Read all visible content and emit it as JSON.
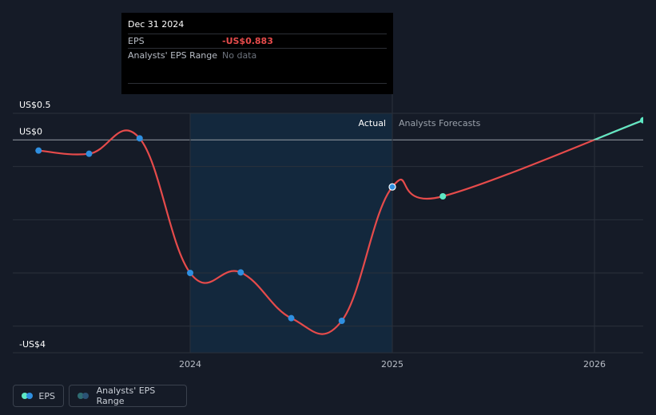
{
  "chart_data": {
    "type": "line",
    "series": [
      {
        "name": "EPS",
        "x": [
          2023.25,
          2023.5,
          2023.75,
          2024.0,
          2024.25,
          2024.5,
          2024.75,
          2025.0
        ],
        "values": [
          -0.2,
          -0.26,
          0.03,
          -2.5,
          -2.49,
          -3.35,
          -3.4,
          -0.883
        ]
      },
      {
        "name": "Analysts Forecasts",
        "x": [
          2025.0,
          2025.25,
          2026.25
        ],
        "values": [
          -0.883,
          -1.06,
          0.37
        ]
      }
    ],
    "ylim": [
      -4,
      0.5
    ],
    "xlim": [
      2023.0,
      2026.25
    ],
    "y_tick_labels": [
      {
        "value": 0.5,
        "label": "US$0.5"
      },
      {
        "value": 0,
        "label": "US$0"
      },
      {
        "value": -4,
        "label": "-US$4"
      }
    ],
    "x_ticks": [
      {
        "value": 2024,
        "label": "2024"
      },
      {
        "value": 2025,
        "label": "2025"
      },
      {
        "value": 2026,
        "label": "2026"
      }
    ],
    "section_labels": {
      "actual": "Actual",
      "forecast": "Analysts Forecasts"
    },
    "highlight_range": [
      2024.0,
      2025.0
    ],
    "colors": {
      "actual_line": "#e64b4b",
      "actual_point": "#2f8fe0",
      "forecast_point": "#5ee8c4",
      "highlight": "#13283d"
    }
  },
  "tooltip": {
    "date": "Dec 31 2024",
    "rows": [
      {
        "label": "EPS",
        "value": "-US$0.883"
      },
      {
        "label": "Analysts' EPS Range",
        "value": "No data"
      }
    ]
  },
  "legend": {
    "items": [
      {
        "label": "EPS"
      },
      {
        "label": "Analysts' EPS Range"
      }
    ]
  }
}
